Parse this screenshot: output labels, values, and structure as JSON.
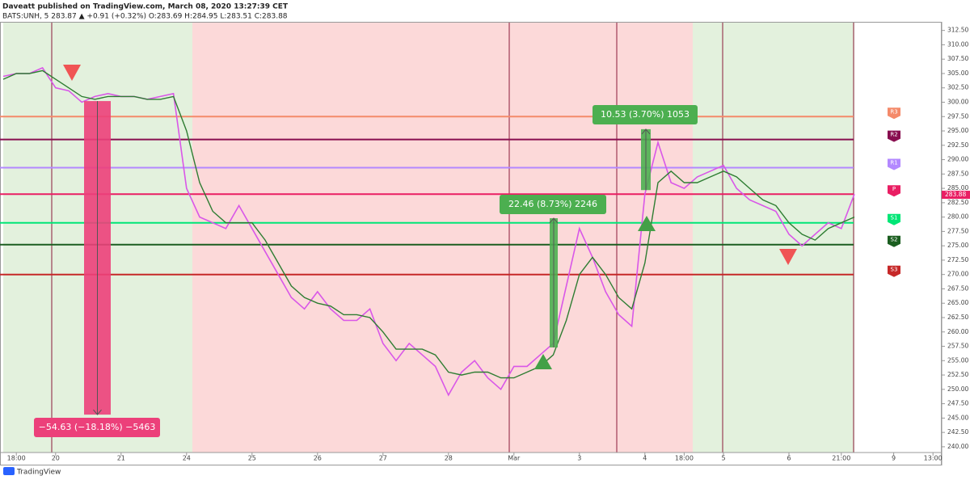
{
  "chart_data": {
    "type": "line",
    "title": "Daveatt published on TradingView.com, March 08, 2020 13:27:39 CET",
    "subtitle": "BATS:UNH, 5  283.87 ▲ +0.91 (+0.32%) O:283.69 H:284.95 L:283.51 C:283.88",
    "footer": "TradingView",
    "categories": [
      null,
      "18:00",
      null,
      null,
      "20",
      null,
      null,
      null,
      null,
      "21",
      null,
      null,
      null,
      null,
      "24",
      null,
      null,
      null,
      null,
      "25",
      null,
      null,
      null,
      null,
      "26",
      null,
      null,
      null,
      null,
      "27",
      null,
      null,
      null,
      null,
      "28",
      null,
      null,
      null,
      null,
      "Mar",
      null,
      null,
      null,
      null,
      "3",
      null,
      null,
      null,
      null,
      "4",
      null,
      null,
      "18:00",
      null,
      null,
      "5",
      null,
      null,
      null,
      null,
      "6",
      null,
      null,
      null,
      "21:00",
      null,
      null,
      null,
      "9",
      null,
      null,
      "13:00"
    ],
    "series": [
      {
        "color": "#d957e8",
        "values": [
          304.5,
          305,
          305,
          306,
          302.5,
          302,
          300,
          301,
          301.5,
          301,
          301,
          300.5,
          301,
          301.5,
          285,
          280,
          279,
          278,
          282,
          278,
          274,
          270,
          266,
          264,
          267,
          264,
          262,
          262,
          264,
          258,
          255,
          258,
          256,
          254,
          249,
          253,
          255,
          252,
          250,
          254,
          254,
          256,
          258,
          268,
          278,
          273,
          267,
          263,
          261,
          284,
          293,
          286,
          285,
          287,
          288,
          289,
          285,
          283,
          282,
          281,
          277,
          275,
          277,
          279,
          278,
          284,
          null,
          null,
          null,
          null,
          null,
          null
        ]
      },
      {
        "color": "#2e7d32",
        "values": [
          304,
          305,
          305,
          305.5,
          304,
          302.5,
          301,
          300.5,
          301,
          301,
          301,
          300.5,
          300.5,
          301,
          295,
          286,
          281,
          279,
          279,
          279,
          276,
          272,
          268,
          266,
          265,
          264.5,
          263,
          263,
          262.5,
          260,
          257,
          257,
          257,
          256,
          253,
          252.5,
          253,
          253,
          252,
          252,
          253,
          254,
          256,
          262,
          270,
          273,
          270,
          266,
          264,
          272,
          286,
          288,
          286,
          286,
          287,
          288,
          287,
          285,
          283,
          282,
          279,
          277,
          276,
          278,
          279,
          280,
          null,
          null,
          null,
          null,
          null,
          null
        ]
      }
    ],
    "ylim": [
      239,
      314
    ],
    "yticks": [
      {
        "value": 240,
        "label": "240.00"
      },
      {
        "value": 242.5,
        "label": "242.50"
      },
      {
        "value": 245,
        "label": "245.00"
      },
      {
        "value": 247.5,
        "label": "247.50"
      },
      {
        "value": 250,
        "label": "250.00"
      },
      {
        "value": 252.5,
        "label": "252.50"
      },
      {
        "value": 255,
        "label": "255.00"
      },
      {
        "value": 257.5,
        "label": "257.50"
      },
      {
        "value": 260,
        "label": "260.00"
      },
      {
        "value": 262.5,
        "label": "262.50"
      },
      {
        "value": 265,
        "label": "265.00"
      },
      {
        "value": 267.5,
        "label": "267.50"
      },
      {
        "value": 270,
        "label": "270.00"
      },
      {
        "value": 272.5,
        "label": "272.50"
      },
      {
        "value": 275,
        "label": "275.00"
      },
      {
        "value": 277.5,
        "label": "277.50"
      },
      {
        "value": 280,
        "label": "280.00"
      },
      {
        "value": 282.5,
        "label": "282.50"
      },
      {
        "value": 285,
        "label": "285.00"
      },
      {
        "value": 287.5,
        "label": "287.50"
      },
      {
        "value": 290,
        "label": "290.00"
      },
      {
        "value": 292.5,
        "label": "292.50"
      },
      {
        "value": 295,
        "label": "295.00"
      },
      {
        "value": 297.5,
        "label": "297.50"
      },
      {
        "value": 300,
        "label": "300.00"
      },
      {
        "value": 302.5,
        "label": "302.50"
      },
      {
        "value": 305,
        "label": "305.00"
      },
      {
        "value": 307.5,
        "label": "307.50"
      },
      {
        "value": 310,
        "label": "310.00"
      },
      {
        "value": 312.5,
        "label": "312.50"
      }
    ],
    "last_price": 283.88,
    "levels": [
      {
        "name": "R3",
        "value": 297.5,
        "color": "#f48a6a"
      },
      {
        "name": "R2",
        "value": 293.5,
        "color": "#880e4f"
      },
      {
        "name": "R1",
        "value": 288.6,
        "color": "#b388ff"
      },
      {
        "name": "P",
        "value": 284,
        "color": "#e91e63"
      },
      {
        "name": "S1",
        "value": 279,
        "color": "#00e676"
      },
      {
        "name": "S2",
        "value": 275.2,
        "color": "#1b5e20"
      },
      {
        "name": "S3",
        "value": 270,
        "color": "#c62828"
      }
    ],
    "annotations": [
      {
        "text": "−54.63 (−18.18%) −5463",
        "from": 300.2,
        "to": 245.6,
        "color": "#ec407a"
      },
      {
        "text": "22.46 (8.73%) 2246",
        "from": 257.3,
        "to": 279.8,
        "color": "#4caf50"
      },
      {
        "text": "10.53 (3.70%) 1053",
        "from": 284.7,
        "to": 295.3,
        "color": "#4caf50"
      }
    ]
  }
}
